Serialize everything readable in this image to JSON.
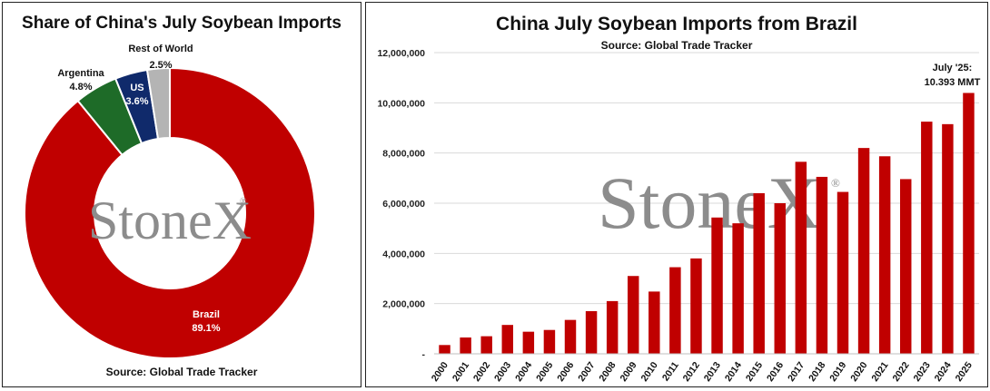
{
  "watermark": "StoneX",
  "watermark_mark": "®",
  "left": {
    "title": "Share of China's July Soybean Imports",
    "source": "Source: Global Trade Tracker"
  },
  "right": {
    "title": "China July Soybean Imports from Brazil",
    "subtitle": "Source: Global Trade Tracker",
    "annotation_line1": "July '25:",
    "annotation_line2": "10.393 MMT"
  },
  "colors": {
    "brazil": "#c00000",
    "argentina": "#1e6b28",
    "us": "#102a6b",
    "rest_of_world": "#b4b4b4",
    "bars": "#c00000"
  },
  "chart_data": [
    {
      "type": "pie",
      "variant": "donut",
      "title": "Share of China's July Soybean Imports",
      "slices": [
        {
          "name": "Brazil",
          "value": 89.1,
          "label": "89.1%",
          "color": "#c00000"
        },
        {
          "name": "Argentina",
          "value": 4.8,
          "label": "4.8%",
          "color": "#1e6b28"
        },
        {
          "name": "US",
          "value": 3.6,
          "label": "3.6%",
          "color": "#102a6b"
        },
        {
          "name": "Rest of World",
          "value": 2.5,
          "label": "2.5%",
          "color": "#b4b4b4"
        }
      ]
    },
    {
      "type": "bar",
      "title": "China July Soybean Imports from Brazil",
      "categories": [
        "2000",
        "2001",
        "2002",
        "2003",
        "2004",
        "2005",
        "2006",
        "2007",
        "2008",
        "2009",
        "2010",
        "2011",
        "2012",
        "2013",
        "2014",
        "2015",
        "2016",
        "2017",
        "2018",
        "2019",
        "2020",
        "2021",
        "2022",
        "2023",
        "2024",
        "2025"
      ],
      "values": [
        350000,
        650000,
        700000,
        1150000,
        880000,
        950000,
        1350000,
        1700000,
        2100000,
        3100000,
        2480000,
        3450000,
        3800000,
        5430000,
        5200000,
        6400000,
        6000000,
        7650000,
        7050000,
        6450000,
        8200000,
        7870000,
        6960000,
        9250000,
        9150000,
        10393000
      ],
      "ylim": [
        0,
        12000000
      ],
      "yticks": [
        0,
        2000000,
        4000000,
        6000000,
        8000000,
        10000000,
        12000000
      ],
      "ytick_labels": [
        "-",
        "2,000,000",
        "4,000,000",
        "6,000,000",
        "8,000,000",
        "10,000,000",
        "12,000,000"
      ],
      "grid": true
    }
  ]
}
